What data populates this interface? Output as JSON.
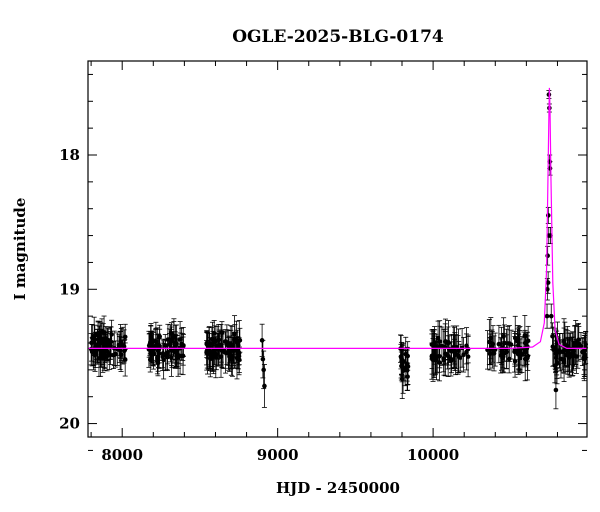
{
  "chart_data": {
    "type": "scatter",
    "title": "OGLE-2025-BLG-0174",
    "xlabel": "HJD - 2450000",
    "ylabel": "I magnitude",
    "xlim": [
      7780,
      10990
    ],
    "ylim": [
      20.1,
      17.3
    ],
    "y_inverted": true,
    "x_ticks": [
      8000,
      9000,
      10000
    ],
    "y_ticks": [
      18,
      19,
      20
    ],
    "grid": false,
    "legend": "none",
    "colors": {
      "model": "#ff00ff",
      "data": "#000000"
    },
    "baseline_mag": 19.44,
    "peak": {
      "t": 10748,
      "mag": 17.5
    },
    "series": [
      {
        "kind": "model",
        "x": [
          7780,
          10500,
          10640,
          10690,
          10715,
          10730,
          10740,
          10745,
          10748,
          10752,
          10758,
          10770,
          10785,
          10810,
          10860,
          10990
        ],
        "y": [
          19.44,
          19.44,
          19.43,
          19.39,
          19.25,
          18.85,
          18.1,
          17.7,
          17.5,
          17.65,
          18.15,
          18.95,
          19.3,
          19.41,
          19.44,
          19.44
        ]
      },
      {
        "kind": "data",
        "x": [
          10745,
          10748,
          10750,
          10752,
          10741,
          10744,
          10737,
          10740,
          10733,
          10755,
          10735,
          10760,
          10768,
          10775,
          10790,
          8900,
          8905,
          8910,
          8915
        ],
        "y": [
          17.55,
          17.65,
          18.05,
          18.1,
          18.45,
          18.6,
          18.75,
          18.95,
          19.2,
          18.6,
          19.0,
          19.2,
          19.35,
          19.45,
          19.75,
          19.38,
          19.52,
          19.6,
          19.72
        ],
        "err": [
          0.03,
          0.03,
          0.05,
          0.05,
          0.06,
          0.06,
          0.07,
          0.08,
          0.09,
          0.06,
          0.08,
          0.09,
          0.1,
          0.12,
          0.14,
          0.12,
          0.14,
          0.14,
          0.16
        ]
      }
    ],
    "seasons": [
      {
        "start": 7800,
        "end": 8030,
        "mean": 19.43,
        "scatter": 0.13,
        "err": 0.11,
        "n": 70
      },
      {
        "start": 8170,
        "end": 8400,
        "mean": 19.44,
        "scatter": 0.13,
        "err": 0.11,
        "n": 70
      },
      {
        "start": 8540,
        "end": 8760,
        "mean": 19.44,
        "scatter": 0.13,
        "err": 0.12,
        "n": 70
      },
      {
        "start": 9790,
        "end": 9840,
        "mean": 19.55,
        "scatter": 0.14,
        "err": 0.13,
        "n": 22
      },
      {
        "start": 9990,
        "end": 10230,
        "mean": 19.46,
        "scatter": 0.14,
        "err": 0.13,
        "n": 55
      },
      {
        "start": 10350,
        "end": 10620,
        "mean": 19.45,
        "scatter": 0.13,
        "err": 0.13,
        "n": 55
      },
      {
        "start": 10770,
        "end": 10990,
        "mean": 19.46,
        "scatter": 0.13,
        "err": 0.13,
        "n": 55
      }
    ]
  }
}
